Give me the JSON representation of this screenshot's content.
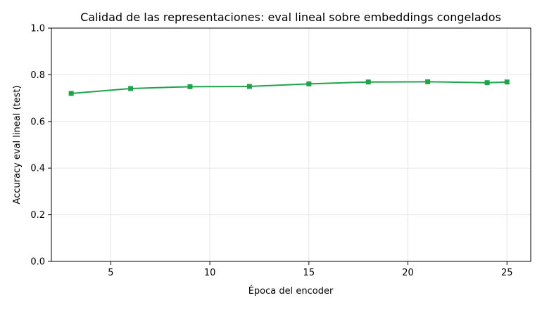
{
  "chart_data": {
    "type": "line",
    "title": "Calidad de las representaciones: eval lineal sobre embeddings congelados",
    "xlabel": "Época del encoder",
    "ylabel": "Accuracy eval lineal (test)",
    "xlim": [
      2,
      26.2
    ],
    "ylim": [
      0.0,
      1.0
    ],
    "xticks": [
      5,
      10,
      15,
      20,
      25
    ],
    "xtick_labels": [
      "5",
      "10",
      "15",
      "20",
      "25"
    ],
    "yticks": [
      0.0,
      0.2,
      0.4,
      0.6,
      0.8,
      1.0
    ],
    "ytick_labels": [
      "0.0",
      "0.2",
      "0.4",
      "0.6",
      "0.8",
      "1.0"
    ],
    "grid": true,
    "series": [
      {
        "color": "#1fa34a",
        "marker": "square",
        "x": [
          3,
          6,
          9,
          12,
          15,
          18,
          21,
          24,
          25
        ],
        "y": [
          0.72,
          0.741,
          0.749,
          0.75,
          0.761,
          0.769,
          0.77,
          0.766,
          0.769
        ]
      }
    ]
  }
}
